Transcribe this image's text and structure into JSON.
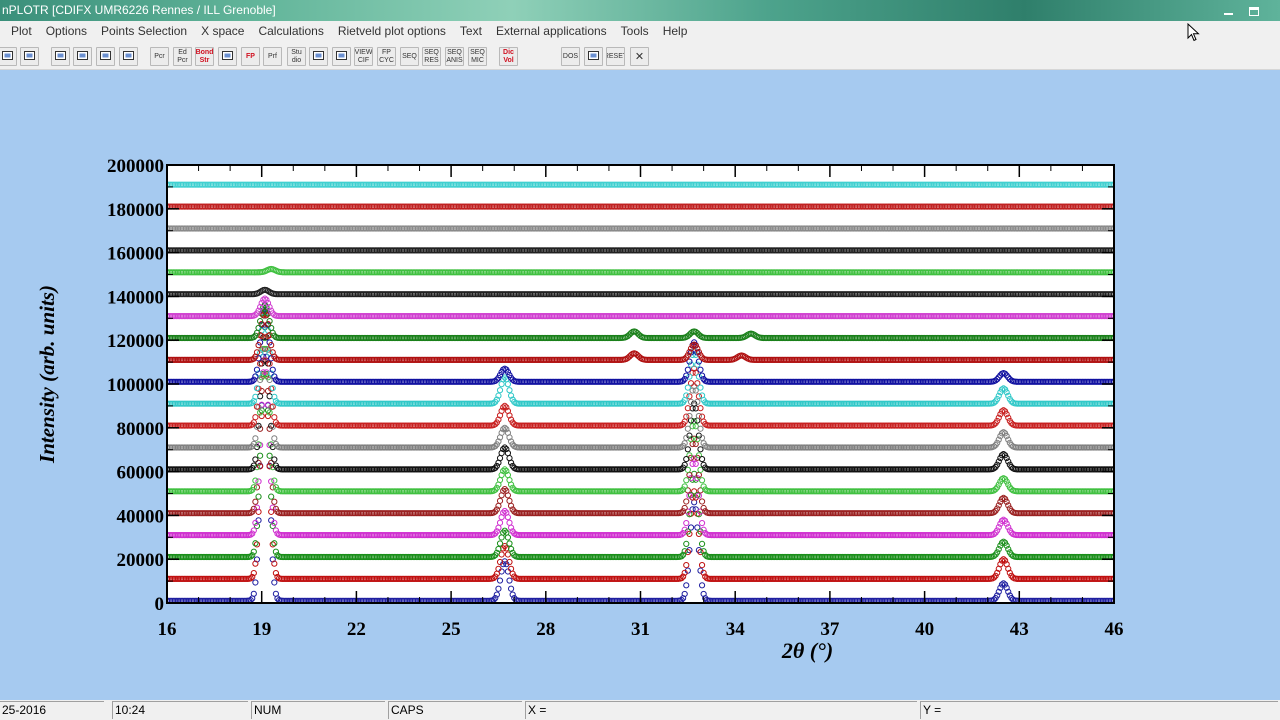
{
  "window": {
    "title": "nPLOTR [CDIFX UMR6226 Rennes / ILL Grenoble]"
  },
  "menu": [
    "Plot",
    "Options",
    "Points Selection",
    "X space",
    "Calculations",
    "Rietveld plot options",
    "Text",
    "External applications",
    "Tools",
    "Help"
  ],
  "toolbar": [
    {
      "label": "",
      "icon": "open-icon"
    },
    {
      "label": "",
      "icon": "printer-icon"
    },
    {
      "label": "",
      "icon": "zoom-page-icon"
    },
    {
      "label": "",
      "icon": "zoom-icon"
    },
    {
      "label": "",
      "icon": "move-horizontal-icon"
    },
    {
      "label": "",
      "icon": "fit-icon"
    },
    {
      "label": "Pcr",
      "icon": "pcr-icon"
    },
    {
      "label": "Ed Pcr",
      "icon": "edit-pcr-icon"
    },
    {
      "label": "Bond Str",
      "icon": "bond-str-icon"
    },
    {
      "label": "",
      "icon": "globe-icon"
    },
    {
      "label": "FP",
      "icon": "fullprof-icon"
    },
    {
      "label": "Prf",
      "icon": "prf-icon"
    },
    {
      "label": "Stu dio",
      "icon": "studio-icon"
    },
    {
      "label": "",
      "icon": "table-icon"
    },
    {
      "label": "",
      "icon": "check-icon"
    },
    {
      "label": "VIEW CIF",
      "icon": "view-cif-icon"
    },
    {
      "label": "FP CYC",
      "icon": "fp-cyc-icon"
    },
    {
      "label": "SEQ",
      "icon": "seq-icon"
    },
    {
      "label": "SEQ RES",
      "icon": "seq-res-icon"
    },
    {
      "label": "SEQ ANIS",
      "icon": "seq-anis-icon"
    },
    {
      "label": "SEQ MIC",
      "icon": "seq-mic-icon"
    },
    {
      "label": "Dic Vol",
      "icon": "dicvol-icon"
    },
    {
      "label": "DOS",
      "icon": "dos-icon"
    },
    {
      "label": "",
      "icon": "image-icon"
    },
    {
      "label": "RESET",
      "icon": "reset-icon"
    },
    {
      "label": "✕",
      "icon": "close-icon"
    }
  ],
  "status": {
    "date": "25-2016",
    "time": "10:24",
    "num": "NUM",
    "caps": "CAPS",
    "x": "X =",
    "y": "Y ="
  },
  "chart_data": {
    "type": "scatter",
    "title": "",
    "xlabel": "2θ (°)",
    "ylabel": "Intensity (arb. units)",
    "xlim": [
      16,
      46
    ],
    "ylim": [
      0,
      200000
    ],
    "xticks": [
      16,
      19,
      22,
      25,
      28,
      31,
      34,
      37,
      40,
      43,
      46
    ],
    "yticks": [
      0,
      20000,
      40000,
      60000,
      80000,
      100000,
      120000,
      140000,
      160000,
      180000,
      200000
    ],
    "grid": false,
    "legend": "none",
    "marker": "open-circle",
    "series": [
      {
        "color": "#1f1fa0",
        "baseline": 1000,
        "peaks": [
          [
            19.1,
            120000
          ],
          [
            26.7,
            18000
          ],
          [
            32.7,
            45000
          ],
          [
            42.5,
            8000
          ]
        ]
      },
      {
        "color": "#c01010",
        "baseline": 11000,
        "peaks": [
          [
            19.1,
            100000
          ],
          [
            26.7,
            15000
          ],
          [
            32.7,
            40000
          ],
          [
            42.5,
            9000
          ]
        ]
      },
      {
        "color": "#1a8f1a",
        "baseline": 21000,
        "peaks": [
          [
            19.1,
            90000
          ],
          [
            26.7,
            12000
          ],
          [
            32.7,
            38000
          ],
          [
            42.5,
            7000
          ]
        ]
      },
      {
        "color": "#d030d0",
        "baseline": 31000,
        "peaks": [
          [
            19.1,
            80000
          ],
          [
            26.7,
            11000
          ],
          [
            32.7,
            35000
          ],
          [
            42.5,
            7000
          ]
        ]
      },
      {
        "color": "#9a2020",
        "baseline": 41000,
        "peaks": [
          [
            19.1,
            75000
          ],
          [
            26.7,
            11000
          ],
          [
            32.7,
            34000
          ],
          [
            42.5,
            7000
          ]
        ]
      },
      {
        "color": "#40c040",
        "baseline": 51000,
        "peaks": [
          [
            19.1,
            70000
          ],
          [
            26.7,
            10000
          ],
          [
            32.7,
            32000
          ],
          [
            42.5,
            6000
          ]
        ]
      },
      {
        "color": "#101010",
        "baseline": 61000,
        "peaks": [
          [
            19.1,
            65000
          ],
          [
            26.7,
            10000
          ],
          [
            32.7,
            30000
          ],
          [
            42.5,
            7000
          ]
        ]
      },
      {
        "color": "#808080",
        "baseline": 71000,
        "peaks": [
          [
            19.1,
            60000
          ],
          [
            26.7,
            9000
          ],
          [
            32.7,
            28000
          ],
          [
            42.5,
            7000
          ]
        ]
      },
      {
        "color": "#c82020",
        "baseline": 81000,
        "peaks": [
          [
            19.1,
            55000
          ],
          [
            26.7,
            9000
          ],
          [
            32.7,
            26000
          ],
          [
            42.5,
            7000
          ]
        ]
      },
      {
        "color": "#30c8c8",
        "baseline": 91000,
        "peaks": [
          [
            19.1,
            45000
          ],
          [
            26.7,
            12000
          ],
          [
            32.7,
            24000
          ],
          [
            42.5,
            7000
          ]
        ]
      },
      {
        "color": "#1010a0",
        "baseline": 101000,
        "peaks": [
          [
            19.1,
            35000
          ],
          [
            26.7,
            6000
          ],
          [
            32.7,
            18000
          ],
          [
            42.5,
            4000
          ]
        ]
      },
      {
        "color": "#b01010",
        "baseline": 111000,
        "peaks": [
          [
            19.1,
            22000
          ],
          [
            26.7,
            0
          ],
          [
            30.8,
            3000
          ],
          [
            32.7,
            7000
          ],
          [
            34.2,
            2000
          ]
        ]
      },
      {
        "color": "#1a801a",
        "baseline": 121000,
        "peaks": [
          [
            19.1,
            15000
          ],
          [
            30.8,
            3000
          ],
          [
            32.7,
            3000
          ],
          [
            34.5,
            2000
          ]
        ]
      },
      {
        "color": "#d040d0",
        "baseline": 131000,
        "peaks": [
          [
            19.1,
            8000
          ]
        ]
      },
      {
        "color": "#202020",
        "baseline": 141000,
        "peaks": [
          [
            19.1,
            2000
          ]
        ]
      },
      {
        "color": "#40c040",
        "baseline": 151000,
        "peaks": [
          [
            19.3,
            1500
          ]
        ]
      },
      {
        "color": "#202020",
        "baseline": 161000,
        "peaks": []
      },
      {
        "color": "#8a8a8a",
        "baseline": 171000,
        "peaks": []
      },
      {
        "color": "#c02020",
        "baseline": 181000,
        "peaks": []
      },
      {
        "color": "#40d0d0",
        "baseline": 191000,
        "peaks": []
      }
    ]
  }
}
